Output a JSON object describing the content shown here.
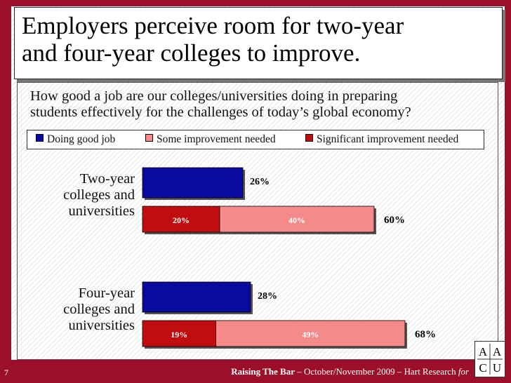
{
  "slide": {
    "title_line1": "Employers perceive room for two-year",
    "title_line2": "and four-year colleges to improve.",
    "question_line1": "How good a job are our colleges/universities doing in preparing",
    "question_line2": "students effectively for the challenges of today’s global economy?"
  },
  "footer": {
    "page_number": "7",
    "source_bold": "Raising The Bar",
    "source_rest": " – October/November 2009 – Hart Research ",
    "source_italic": "for"
  },
  "logo": {
    "letters": [
      "A",
      "A",
      "C",
      "U"
    ]
  },
  "colors": {
    "doing_good_job": "#0a0a9e",
    "some_improvement": "#f48a8a",
    "significant_improvement": "#c00d10",
    "background": "#9c0f2a"
  },
  "chart_data": {
    "type": "bar",
    "orientation": "horizontal",
    "legend_placement": "top",
    "categories": [
      {
        "label_lines": [
          "Two-year",
          "colleges and",
          "universities"
        ]
      },
      {
        "label_lines": [
          "Four-year",
          "colleges and",
          "universities"
        ]
      }
    ],
    "series": [
      {
        "name": "Doing good job",
        "values": [
          26,
          28
        ]
      },
      {
        "name": "Some improvement needed",
        "values": [
          40,
          49
        ]
      },
      {
        "name": "Significant improvement needed",
        "values": [
          20,
          19
        ]
      }
    ],
    "improvement_total": [
      60,
      68
    ],
    "value_labels": {
      "doing_good_job": [
        "26%",
        "28%"
      ],
      "significant": [
        "20%",
        "19%"
      ],
      "some": [
        "40%",
        "49%"
      ],
      "total": [
        "60%",
        "68%"
      ]
    }
  }
}
